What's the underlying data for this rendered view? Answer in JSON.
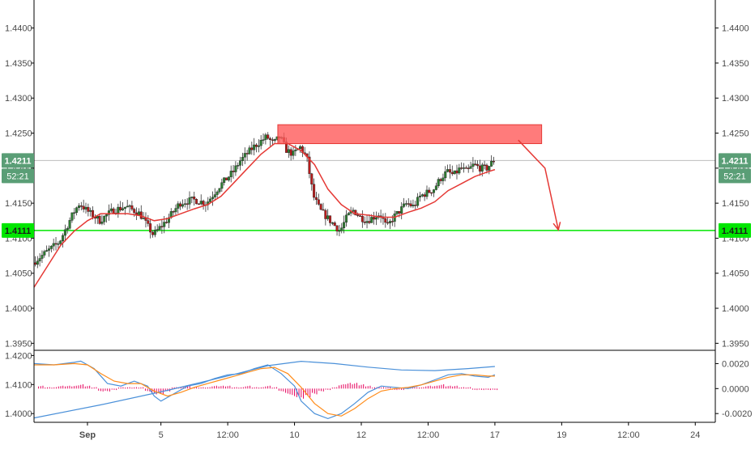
{
  "colors": {
    "background": "#ffffff",
    "axis": "#000000",
    "grid": "#e6e6e6",
    "candle_up": "#2e7d32",
    "candle_down": "#b71c1c",
    "moving_average": "#e53935",
    "support_line": "#00e600",
    "supply_zone": "#ff5a5a",
    "arrow": "#e53935",
    "price_tag": "#5a9e76",
    "support_tag": "#00e600",
    "macd_line": "#4a90d9",
    "signal_line": "#ff8c1a",
    "histogram": "#e6005c",
    "slow_line": "#4a90d9"
  },
  "price_tag": {
    "value": "1.4211",
    "countdown": "52:21"
  },
  "support_tag": {
    "value": "1.4111"
  },
  "chart_data": [
    {
      "type": "candlestick",
      "title": "",
      "xlabel": "",
      "ylabel": "",
      "ylim": [
        1.394,
        1.444
      ],
      "yticks": [
        "1.3950",
        "1.4000",
        "1.4050",
        "1.4100",
        "1.4150",
        "1.4200",
        "1.4250",
        "1.4300",
        "1.4350",
        "1.4400"
      ],
      "y_axis_both_sides": true,
      "x_ticks": [
        {
          "label": "Sep",
          "t": 8
        },
        {
          "label": "5",
          "t": 19
        },
        {
          "label": "12:00",
          "t": 29
        },
        {
          "label": "10",
          "t": 39
        },
        {
          "label": "12",
          "t": 49
        },
        {
          "label": "12:00",
          "t": 59
        },
        {
          "label": "17",
          "t": 69
        },
        {
          "label": "19",
          "t": 79
        },
        {
          "label": "12:00",
          "t": 89
        },
        {
          "label": "24",
          "t": 99
        }
      ],
      "xlim": [
        0,
        102
      ],
      "price_path": [
        [
          0,
          1.4065
        ],
        [
          2,
          1.408
        ],
        [
          4,
          1.4095
        ],
        [
          6,
          1.4135
        ],
        [
          7,
          1.415
        ],
        [
          8,
          1.414
        ],
        [
          10,
          1.4125
        ],
        [
          12,
          1.414
        ],
        [
          14,
          1.4145
        ],
        [
          16,
          1.4135
        ],
        [
          17,
          1.412
        ],
        [
          18,
          1.4105
        ],
        [
          20,
          1.4125
        ],
        [
          22,
          1.415
        ],
        [
          24,
          1.4155
        ],
        [
          26,
          1.415
        ],
        [
          28,
          1.4175
        ],
        [
          30,
          1.4195
        ],
        [
          31,
          1.421
        ],
        [
          33,
          1.423
        ],
        [
          35,
          1.4245
        ],
        [
          36,
          1.4235
        ],
        [
          37,
          1.4245
        ],
        [
          38,
          1.4225
        ],
        [
          39,
          1.422
        ],
        [
          40,
          1.423
        ],
        [
          41,
          1.4215
        ],
        [
          42,
          1.416
        ],
        [
          43,
          1.414
        ],
        [
          44,
          1.413
        ],
        [
          45,
          1.412
        ],
        [
          46,
          1.411
        ],
        [
          47,
          1.413
        ],
        [
          48,
          1.414
        ],
        [
          49,
          1.413
        ],
        [
          50,
          1.4125
        ],
        [
          52,
          1.4135
        ],
        [
          53,
          1.4115
        ],
        [
          54,
          1.413
        ],
        [
          55,
          1.414
        ],
        [
          56,
          1.415
        ],
        [
          57,
          1.4145
        ],
        [
          58,
          1.416
        ],
        [
          59,
          1.4165
        ],
        [
          60,
          1.417
        ],
        [
          61,
          1.4185
        ],
        [
          62,
          1.4195
        ],
        [
          63,
          1.419
        ],
        [
          64,
          1.42
        ],
        [
          65,
          1.4195
        ],
        [
          66,
          1.4205
        ],
        [
          67,
          1.42
        ],
        [
          68,
          1.42
        ],
        [
          69,
          1.4211
        ]
      ],
      "moving_average": [
        [
          0,
          1.403
        ],
        [
          2,
          1.406
        ],
        [
          4,
          1.409
        ],
        [
          6,
          1.411
        ],
        [
          8,
          1.4125
        ],
        [
          10,
          1.4135
        ],
        [
          12,
          1.4135
        ],
        [
          14,
          1.4135
        ],
        [
          16,
          1.4132
        ],
        [
          18,
          1.4125
        ],
        [
          20,
          1.4128
        ],
        [
          22,
          1.4135
        ],
        [
          24,
          1.4142
        ],
        [
          26,
          1.4148
        ],
        [
          28,
          1.416
        ],
        [
          30,
          1.418
        ],
        [
          32,
          1.42
        ],
        [
          34,
          1.422
        ],
        [
          36,
          1.4235
        ],
        [
          38,
          1.4235
        ],
        [
          40,
          1.4225
        ],
        [
          42,
          1.4205
        ],
        [
          44,
          1.417
        ],
        [
          46,
          1.4148
        ],
        [
          48,
          1.4135
        ],
        [
          50,
          1.4133
        ],
        [
          52,
          1.413
        ],
        [
          54,
          1.413
        ],
        [
          56,
          1.4137
        ],
        [
          58,
          1.4143
        ],
        [
          60,
          1.4152
        ],
        [
          62,
          1.4168
        ],
        [
          64,
          1.4178
        ],
        [
          66,
          1.4188
        ],
        [
          68,
          1.4195
        ],
        [
          69,
          1.4198
        ]
      ],
      "annotations": {
        "support_level": 1.4111,
        "current_price": 1.4211,
        "supply_zone": {
          "x_start": 36.5,
          "x_end": 76,
          "y_low": 1.4235,
          "y_high": 1.4262
        },
        "arrow": {
          "from": [
            72.5,
            1.424
          ],
          "mid": [
            76.5,
            1.42
          ],
          "to": [
            78.5,
            1.4112
          ]
        }
      }
    },
    {
      "type": "line",
      "title": "",
      "left_axis": {
        "ylim": [
          1.397,
          1.4215
        ],
        "ticks": [
          "1.4000",
          "1.4100",
          "1.4200"
        ]
      },
      "right_axis": {
        "ylim": [
          -0.0027,
          0.003
        ],
        "ticks": [
          "-0.0020",
          "0.0000",
          "0.0020"
        ]
      },
      "series": [
        {
          "role": "slow_line",
          "axis": "left",
          "points": [
            [
              0,
              1.3985
            ],
            [
              10,
              1.403
            ],
            [
              20,
              1.408
            ],
            [
              30,
              1.4135
            ],
            [
              35,
              1.4165
            ],
            [
              40,
              1.418
            ],
            [
              45,
              1.4172
            ],
            [
              50,
              1.416
            ],
            [
              55,
              1.415
            ],
            [
              60,
              1.4148
            ],
            [
              65,
              1.4155
            ],
            [
              69,
              1.4162
            ]
          ]
        },
        {
          "role": "macd_line",
          "axis": "right",
          "points": [
            [
              0,
              0.002
            ],
            [
              3,
              0.0019
            ],
            [
              6,
              0.0021
            ],
            [
              7,
              0.0022
            ],
            [
              9,
              0.0016
            ],
            [
              11,
              0.0004
            ],
            [
              13,
              0.0002
            ],
            [
              15,
              0.0006
            ],
            [
              17,
              0.0002
            ],
            [
              18,
              -0.0006
            ],
            [
              19,
              -0.001
            ],
            [
              21,
              -0.0004
            ],
            [
              23,
              0.0002
            ],
            [
              25,
              0.0004
            ],
            [
              27,
              0.0008
            ],
            [
              29,
              0.0011
            ],
            [
              31,
              0.0012
            ],
            [
              33,
              0.0016
            ],
            [
              35,
              0.0019
            ],
            [
              37,
              0.0012
            ],
            [
              39,
              0.0002
            ],
            [
              40,
              -0.001
            ],
            [
              42,
              -0.002
            ],
            [
              44,
              -0.0024
            ],
            [
              46,
              -0.002
            ],
            [
              48,
              -0.0012
            ],
            [
              50,
              -0.0003
            ],
            [
              52,
              0.0002
            ],
            [
              54,
              0.0001
            ],
            [
              56,
              0.0
            ],
            [
              58,
              0.0003
            ],
            [
              60,
              0.0007
            ],
            [
              62,
              0.0011
            ],
            [
              64,
              0.0012
            ],
            [
              66,
              0.001
            ],
            [
              68,
              0.0009
            ],
            [
              69,
              0.0011
            ]
          ]
        },
        {
          "role": "signal_line",
          "axis": "right",
          "points": [
            [
              0,
              0.0019
            ],
            [
              3,
              0.0019
            ],
            [
              6,
              0.002
            ],
            [
              8,
              0.0019
            ],
            [
              10,
              0.0012
            ],
            [
              12,
              0.0006
            ],
            [
              14,
              0.0004
            ],
            [
              16,
              0.0004
            ],
            [
              18,
              -0.0002
            ],
            [
              20,
              -0.0006
            ],
            [
              22,
              -0.0003
            ],
            [
              24,
              0.0001
            ],
            [
              26,
              0.0004
            ],
            [
              28,
              0.0007
            ],
            [
              30,
              0.001
            ],
            [
              32,
              0.0013
            ],
            [
              34,
              0.0016
            ],
            [
              36,
              0.0017
            ],
            [
              38,
              0.0012
            ],
            [
              40,
              0.0001
            ],
            [
              42,
              -0.0012
            ],
            [
              44,
              -0.002
            ],
            [
              46,
              -0.0022
            ],
            [
              48,
              -0.0016
            ],
            [
              50,
              -0.0008
            ],
            [
              52,
              -0.0002
            ],
            [
              54,
              0.0
            ],
            [
              56,
              0.0001
            ],
            [
              58,
              0.0003
            ],
            [
              60,
              0.0006
            ],
            [
              62,
              0.0009
            ],
            [
              64,
              0.0011
            ],
            [
              66,
              0.0011
            ],
            [
              68,
              0.001
            ],
            [
              69,
              0.001
            ]
          ]
        }
      ],
      "histogram": [
        [
          1,
          0.0002
        ],
        [
          2,
          0.0001
        ],
        [
          3,
          0.0001
        ],
        [
          4,
          0.0002
        ],
        [
          5,
          0.0002
        ],
        [
          6,
          0.0002
        ],
        [
          7,
          0.0003
        ],
        [
          8,
          0.0002
        ],
        [
          9,
          0.0001
        ],
        [
          10,
          -0.0002
        ],
        [
          11,
          -0.0002
        ],
        [
          12,
          -0.0001
        ],
        [
          13,
          0.0001
        ],
        [
          14,
          0.0001
        ],
        [
          15,
          0.0001
        ],
        [
          16,
          0.0001
        ],
        [
          17,
          -0.0002
        ],
        [
          18,
          -0.0004
        ],
        [
          19,
          -0.0004
        ],
        [
          20,
          -0.0002
        ],
        [
          21,
          0.0001
        ],
        [
          22,
          0.0001
        ],
        [
          23,
          0.0002
        ],
        [
          24,
          0.0001
        ],
        [
          25,
          0.0001
        ],
        [
          26,
          0.0001
        ],
        [
          27,
          0.0002
        ],
        [
          28,
          0.0002
        ],
        [
          29,
          0.0002
        ],
        [
          30,
          0.0001
        ],
        [
          31,
          0.0001
        ],
        [
          32,
          0.0002
        ],
        [
          33,
          0.0001
        ],
        [
          34,
          0.0001
        ],
        [
          35,
          0.0002
        ],
        [
          36,
          0.0001
        ],
        [
          37,
          -0.0002
        ],
        [
          38,
          -0.0004
        ],
        [
          39,
          -0.0006
        ],
        [
          40,
          -0.0007
        ],
        [
          41,
          -0.0006
        ],
        [
          42,
          -0.0004
        ],
        [
          43,
          -0.0002
        ],
        [
          44,
          -0.0001
        ],
        [
          45,
          0.0001
        ],
        [
          46,
          0.0003
        ],
        [
          47,
          0.0004
        ],
        [
          48,
          0.0004
        ],
        [
          49,
          0.0003
        ],
        [
          50,
          0.0002
        ],
        [
          51,
          0.0001
        ],
        [
          52,
          0.0001
        ],
        [
          53,
          0.0001
        ],
        [
          54,
          -0.0001
        ],
        [
          55,
          -0.0001
        ],
        [
          56,
          0.0001
        ],
        [
          57,
          0.0001
        ],
        [
          58,
          0.0001
        ],
        [
          59,
          0.0002
        ],
        [
          60,
          0.0002
        ],
        [
          61,
          0.0003
        ],
        [
          62,
          0.0002
        ],
        [
          63,
          0.0002
        ],
        [
          64,
          0.0001
        ],
        [
          65,
          0.0001
        ],
        [
          66,
          -0.0001
        ],
        [
          67,
          -0.0001
        ],
        [
          68,
          -0.0001
        ],
        [
          69,
          -0.0001
        ]
      ]
    }
  ]
}
